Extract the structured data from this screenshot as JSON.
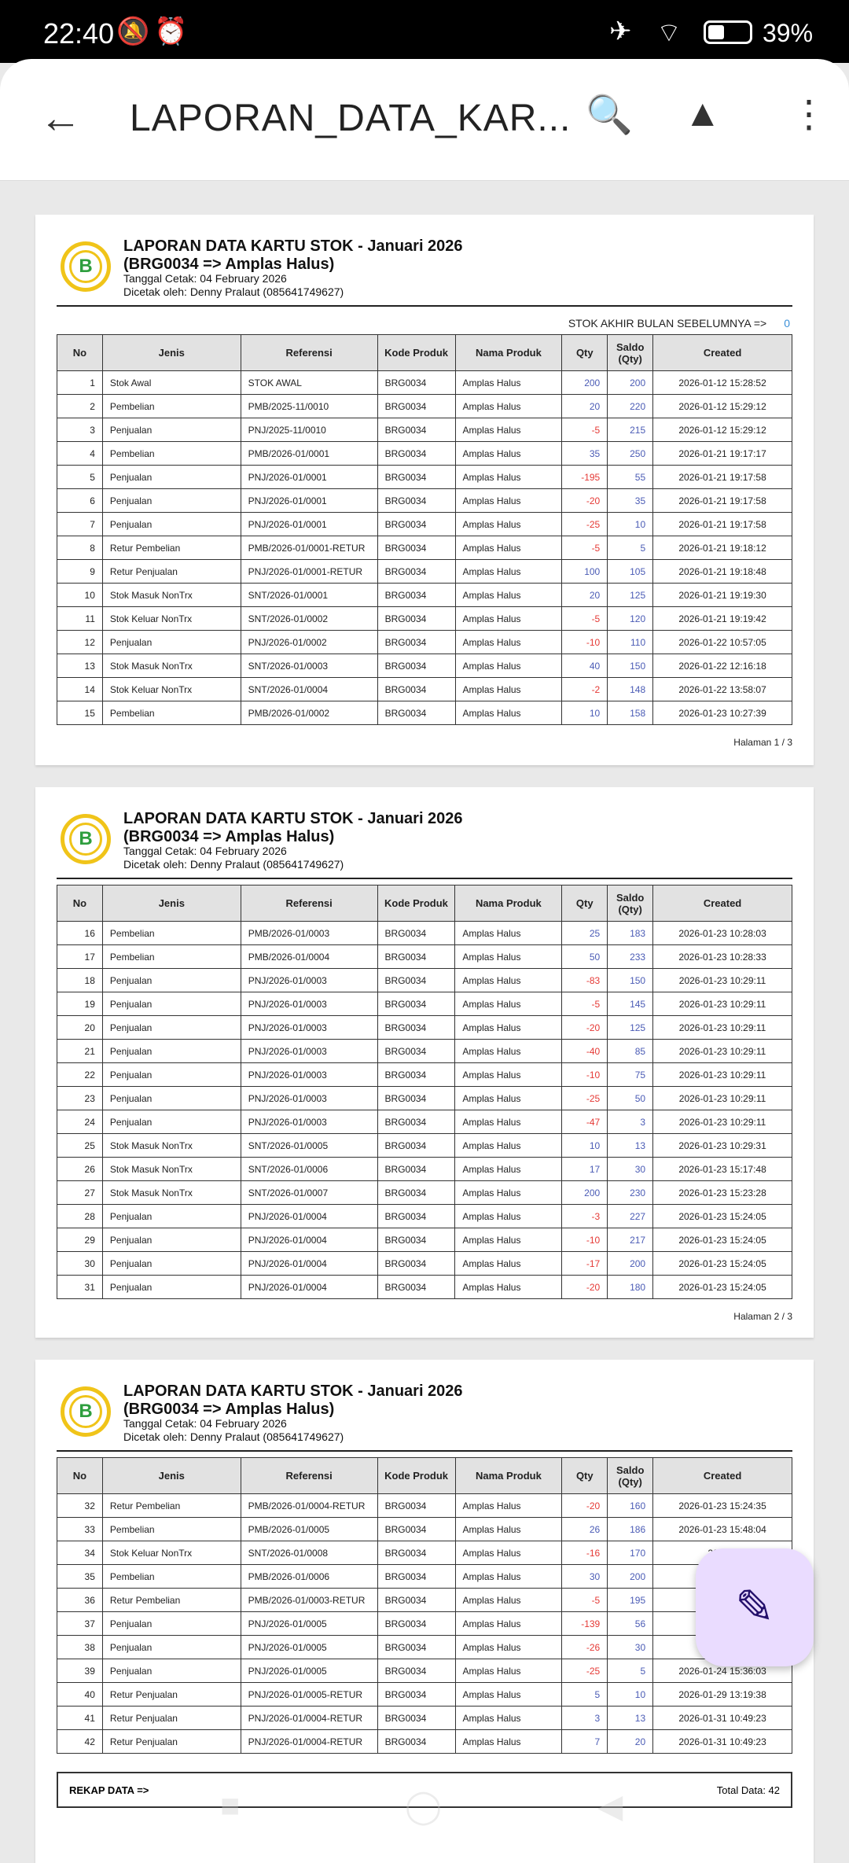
{
  "status": {
    "time": "22:40",
    "battery": "39%",
    "icons": [
      "mute-icon",
      "alarm-icon",
      "airplane-icon",
      "wifi-icon",
      "battery-icon"
    ]
  },
  "appbar": {
    "title": "LAPORAN_DATA_KAR...",
    "icons": [
      "back-icon",
      "search-document-icon",
      "drive-add-icon",
      "more-icon"
    ]
  },
  "report": {
    "title": "LAPORAN DATA KARTU STOK - Januari 2026",
    "subtitle": "(BRG0034 => Amplas Halus)",
    "printed_date": "Tanggal Cetak: 04 February 2026",
    "printed_by": "Dicetak oleh: Denny Pralaut (085641749627)",
    "logo_letter": "B",
    "prev_label": "STOK AKHIR BULAN SEBELUMNYA =>",
    "prev_value": "0",
    "headers": [
      "No",
      "Jenis",
      "Referensi",
      "Kode Produk",
      "Nama Produk",
      "Qty",
      "Saldo (Qty)",
      "Created"
    ],
    "rekap_label": "REKAP DATA =>",
    "total": "Total Data: 42"
  },
  "colors": {
    "positive": "#4a5bb5",
    "negative": "#e53935",
    "fab": "#eadcff"
  },
  "pages": [
    {
      "label": "Halaman 1 / 3",
      "rows": [
        [
          "1",
          "Stok Awal",
          "STOK AWAL",
          "BRG0034",
          "Amplas Halus",
          "200",
          "200",
          "2026-01-12 15:28:52"
        ],
        [
          "2",
          "Pembelian",
          "PMB/2025-11/0010",
          "BRG0034",
          "Amplas Halus",
          "20",
          "220",
          "2026-01-12 15:29:12"
        ],
        [
          "3",
          "Penjualan",
          "PNJ/2025-11/0010",
          "BRG0034",
          "Amplas Halus",
          "-5",
          "215",
          "2026-01-12 15:29:12"
        ],
        [
          "4",
          "Pembelian",
          "PMB/2026-01/0001",
          "BRG0034",
          "Amplas Halus",
          "35",
          "250",
          "2026-01-21 19:17:17"
        ],
        [
          "5",
          "Penjualan",
          "PNJ/2026-01/0001",
          "BRG0034",
          "Amplas Halus",
          "-195",
          "55",
          "2026-01-21 19:17:58"
        ],
        [
          "6",
          "Penjualan",
          "PNJ/2026-01/0001",
          "BRG0034",
          "Amplas Halus",
          "-20",
          "35",
          "2026-01-21 19:17:58"
        ],
        [
          "7",
          "Penjualan",
          "PNJ/2026-01/0001",
          "BRG0034",
          "Amplas Halus",
          "-25",
          "10",
          "2026-01-21 19:17:58"
        ],
        [
          "8",
          "Retur Pembelian",
          "PMB/2026-01/0001-RETUR",
          "BRG0034",
          "Amplas Halus",
          "-5",
          "5",
          "2026-01-21 19:18:12"
        ],
        [
          "9",
          "Retur Penjualan",
          "PNJ/2026-01/0001-RETUR",
          "BRG0034",
          "Amplas Halus",
          "100",
          "105",
          "2026-01-21 19:18:48"
        ],
        [
          "10",
          "Stok Masuk NonTrx",
          "SNT/2026-01/0001",
          "BRG0034",
          "Amplas Halus",
          "20",
          "125",
          "2026-01-21 19:19:30"
        ],
        [
          "11",
          "Stok Keluar NonTrx",
          "SNT/2026-01/0002",
          "BRG0034",
          "Amplas Halus",
          "-5",
          "120",
          "2026-01-21 19:19:42"
        ],
        [
          "12",
          "Penjualan",
          "PNJ/2026-01/0002",
          "BRG0034",
          "Amplas Halus",
          "-10",
          "110",
          "2026-01-22 10:57:05"
        ],
        [
          "13",
          "Stok Masuk NonTrx",
          "SNT/2026-01/0003",
          "BRG0034",
          "Amplas Halus",
          "40",
          "150",
          "2026-01-22 12:16:18"
        ],
        [
          "14",
          "Stok Keluar NonTrx",
          "SNT/2026-01/0004",
          "BRG0034",
          "Amplas Halus",
          "-2",
          "148",
          "2026-01-22 13:58:07"
        ],
        [
          "15",
          "Pembelian",
          "PMB/2026-01/0002",
          "BRG0034",
          "Amplas Halus",
          "10",
          "158",
          "2026-01-23 10:27:39"
        ]
      ]
    },
    {
      "label": "Halaman 2 / 3",
      "rows": [
        [
          "16",
          "Pembelian",
          "PMB/2026-01/0003",
          "BRG0034",
          "Amplas Halus",
          "25",
          "183",
          "2026-01-23 10:28:03"
        ],
        [
          "17",
          "Pembelian",
          "PMB/2026-01/0004",
          "BRG0034",
          "Amplas Halus",
          "50",
          "233",
          "2026-01-23 10:28:33"
        ],
        [
          "18",
          "Penjualan",
          "PNJ/2026-01/0003",
          "BRG0034",
          "Amplas Halus",
          "-83",
          "150",
          "2026-01-23 10:29:11"
        ],
        [
          "19",
          "Penjualan",
          "PNJ/2026-01/0003",
          "BRG0034",
          "Amplas Halus",
          "-5",
          "145",
          "2026-01-23 10:29:11"
        ],
        [
          "20",
          "Penjualan",
          "PNJ/2026-01/0003",
          "BRG0034",
          "Amplas Halus",
          "-20",
          "125",
          "2026-01-23 10:29:11"
        ],
        [
          "21",
          "Penjualan",
          "PNJ/2026-01/0003",
          "BRG0034",
          "Amplas Halus",
          "-40",
          "85",
          "2026-01-23 10:29:11"
        ],
        [
          "22",
          "Penjualan",
          "PNJ/2026-01/0003",
          "BRG0034",
          "Amplas Halus",
          "-10",
          "75",
          "2026-01-23 10:29:11"
        ],
        [
          "23",
          "Penjualan",
          "PNJ/2026-01/0003",
          "BRG0034",
          "Amplas Halus",
          "-25",
          "50",
          "2026-01-23 10:29:11"
        ],
        [
          "24",
          "Penjualan",
          "PNJ/2026-01/0003",
          "BRG0034",
          "Amplas Halus",
          "-47",
          "3",
          "2026-01-23 10:29:11"
        ],
        [
          "25",
          "Stok Masuk NonTrx",
          "SNT/2026-01/0005",
          "BRG0034",
          "Amplas Halus",
          "10",
          "13",
          "2026-01-23 10:29:31"
        ],
        [
          "26",
          "Stok Masuk NonTrx",
          "SNT/2026-01/0006",
          "BRG0034",
          "Amplas Halus",
          "17",
          "30",
          "2026-01-23 15:17:48"
        ],
        [
          "27",
          "Stok Masuk NonTrx",
          "SNT/2026-01/0007",
          "BRG0034",
          "Amplas Halus",
          "200",
          "230",
          "2026-01-23 15:23:28"
        ],
        [
          "28",
          "Penjualan",
          "PNJ/2026-01/0004",
          "BRG0034",
          "Amplas Halus",
          "-3",
          "227",
          "2026-01-23 15:24:05"
        ],
        [
          "29",
          "Penjualan",
          "PNJ/2026-01/0004",
          "BRG0034",
          "Amplas Halus",
          "-10",
          "217",
          "2026-01-23 15:24:05"
        ],
        [
          "30",
          "Penjualan",
          "PNJ/2026-01/0004",
          "BRG0034",
          "Amplas Halus",
          "-17",
          "200",
          "2026-01-23 15:24:05"
        ],
        [
          "31",
          "Penjualan",
          "PNJ/2026-01/0004",
          "BRG0034",
          "Amplas Halus",
          "-20",
          "180",
          "2026-01-23 15:24:05"
        ]
      ]
    },
    {
      "label": "",
      "rows": [
        [
          "32",
          "Retur Pembelian",
          "PMB/2026-01/0004-RETUR",
          "BRG0034",
          "Amplas Halus",
          "-20",
          "160",
          "2026-01-23 15:24:35"
        ],
        [
          "33",
          "Pembelian",
          "PMB/2026-01/0005",
          "BRG0034",
          "Amplas Halus",
          "26",
          "186",
          "2026-01-23 15:48:04"
        ],
        [
          "34",
          "Stok Keluar NonTrx",
          "SNT/2026-01/0008",
          "BRG0034",
          "Amplas Halus",
          "-16",
          "170",
          "2026-0"
        ],
        [
          "35",
          "Pembelian",
          "PMB/2026-01/0006",
          "BRG0034",
          "Amplas Halus",
          "30",
          "200",
          "202"
        ],
        [
          "36",
          "Retur Pembelian",
          "PMB/2026-01/0003-RETUR",
          "BRG0034",
          "Amplas Halus",
          "-5",
          "195",
          "202"
        ],
        [
          "37",
          "Penjualan",
          "PNJ/2026-01/0005",
          "BRG0034",
          "Amplas Halus",
          "-139",
          "56",
          "202"
        ],
        [
          "38",
          "Penjualan",
          "PNJ/2026-01/0005",
          "BRG0034",
          "Amplas Halus",
          "-26",
          "30",
          "202"
        ],
        [
          "39",
          "Penjualan",
          "PNJ/2026-01/0005",
          "BRG0034",
          "Amplas Halus",
          "-25",
          "5",
          "2026-01-24 15:36:03"
        ],
        [
          "40",
          "Retur Penjualan",
          "PNJ/2026-01/0005-RETUR",
          "BRG0034",
          "Amplas Halus",
          "5",
          "10",
          "2026-01-29 13:19:38"
        ],
        [
          "41",
          "Retur Penjualan",
          "PNJ/2026-01/0004-RETUR",
          "BRG0034",
          "Amplas Halus",
          "3",
          "13",
          "2026-01-31 10:49:23"
        ],
        [
          "42",
          "Retur Penjualan",
          "PNJ/2026-01/0004-RETUR",
          "BRG0034",
          "Amplas Halus",
          "7",
          "20",
          "2026-01-31 10:49:23"
        ]
      ]
    }
  ]
}
